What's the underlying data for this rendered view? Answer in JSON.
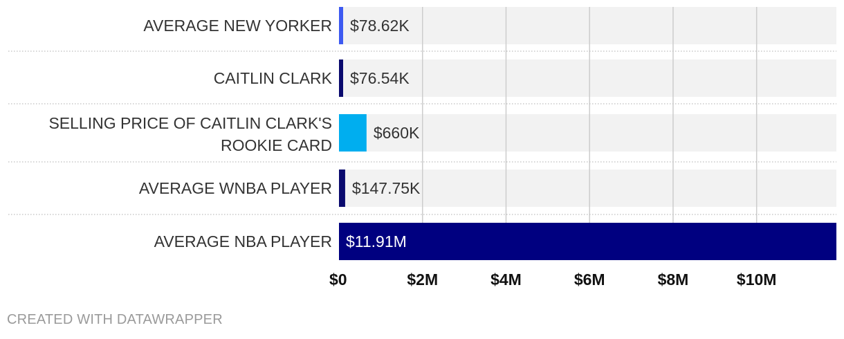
{
  "chart_data": {
    "type": "bar",
    "orientation": "horizontal",
    "categories": [
      "AVERAGE NEW YORKER",
      "CAITLIN CLARK",
      "SELLING PRICE OF CAITLIN CLARK'S ROOKIE CARD",
      "AVERAGE WNBA PLAYER",
      "AVERAGE NBA PLAYER"
    ],
    "values": [
      78620,
      76540,
      660000,
      147750,
      11910000
    ],
    "value_labels": [
      "$78.62K",
      "$76.54K",
      "$660K",
      "$147.75K",
      "$11.91M"
    ],
    "bar_colors": [
      "#3d5af1",
      "#0a0a6e",
      "#00aeef",
      "#0a0a6e",
      "#000080"
    ],
    "xlim": [
      0,
      11910000
    ],
    "x_ticks": [
      0,
      2000000,
      4000000,
      6000000,
      8000000,
      10000000
    ],
    "x_tick_labels": [
      "$0",
      "$2M",
      "$4M",
      "$6M",
      "$8M",
      "$10M"
    ],
    "grid": true,
    "track_color": "#f2f2f2",
    "grid_color": "#cccccc"
  },
  "footer": {
    "credit": "CREATED WITH DATAWRAPPER"
  }
}
